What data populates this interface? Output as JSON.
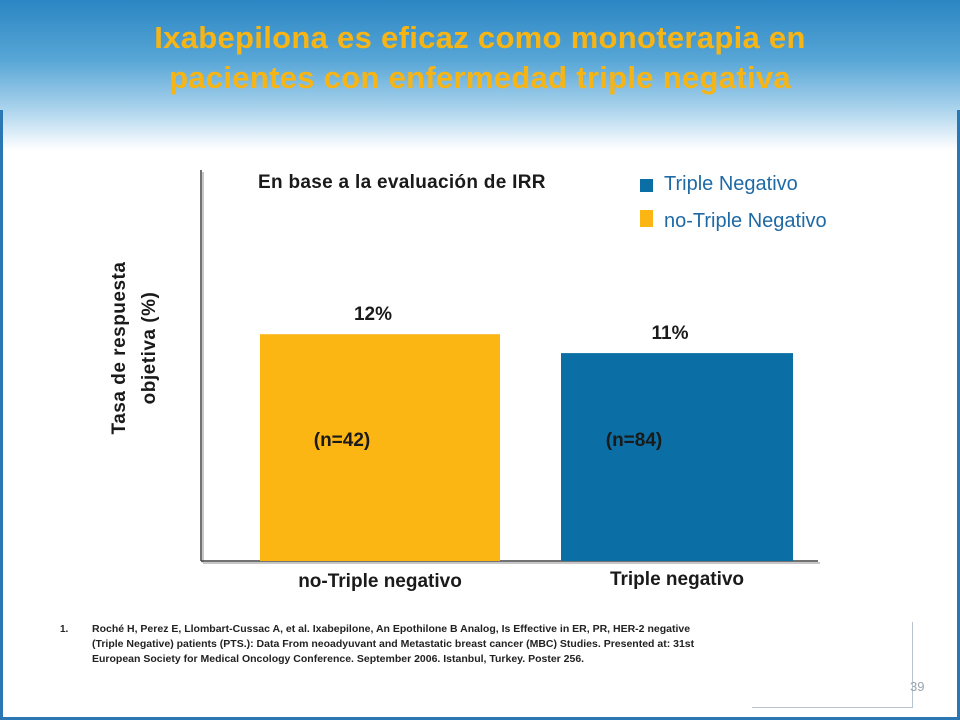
{
  "slide": {
    "title_line1": "Ixabepilona es eficaz como monoterapia en",
    "title_line2": "pacientes con enfermedad triple negativa",
    "page_number": "39"
  },
  "chart_data": {
    "type": "bar",
    "title": "En base a la evaluación de IRR",
    "ylabel_line1": "Tasa de respuesta",
    "ylabel_line2": "objetiva (%)",
    "categories": [
      "no-Triple negativo",
      "Triple negativo"
    ],
    "values": [
      12,
      11
    ],
    "value_labels": [
      "12%",
      "11%"
    ],
    "n_labels": [
      "(n=42)",
      "(n=84)"
    ],
    "colors": [
      "#fbb614",
      "#0b6ea4"
    ],
    "legend": [
      {
        "label": "Triple Negativo",
        "color": "#0b6ea4"
      },
      {
        "label": "no-Triple Negativo",
        "color": "#fbb614"
      }
    ],
    "legend_position": "top-right",
    "grid": false
  },
  "reference": {
    "number": "1.",
    "text": "Roché H, Perez E, Llombart-Cussac A, et al. Ixabepilone, An Epothilone B Analog, Is Effective in ER, PR, HER-2 negative (Triple Negative) patients (PTS.): Data From neoadyuvant and Metastatic breast cancer (MBC) Studies. Presented at: 31st European Society for Medical Oncology Conference. September 2006. Istanbul, Turkey. Poster 256."
  }
}
